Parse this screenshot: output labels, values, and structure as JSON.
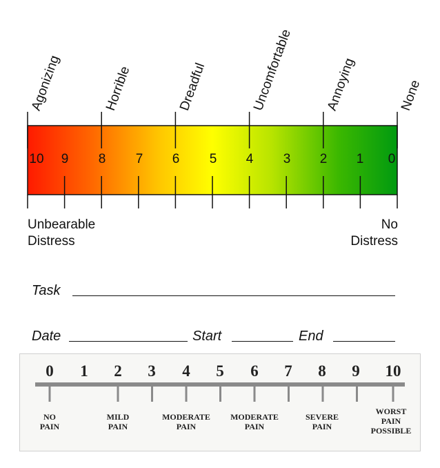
{
  "top_scale": {
    "descriptors": [
      {
        "text": "Agonizing",
        "value": 10
      },
      {
        "text": "Horrible",
        "value": 8
      },
      {
        "text": "Dreadful",
        "value": 6
      },
      {
        "text": "Uncomfortable",
        "value": 4
      },
      {
        "text": "Annoying",
        "value": 2
      },
      {
        "text": "None",
        "value": 0
      }
    ],
    "numbers": [
      "10",
      "9",
      "8",
      "7",
      "6",
      "5",
      "4",
      "3",
      "2",
      "1",
      "0"
    ],
    "left_label": {
      "line1": "Unbearable",
      "line2": "Distress"
    },
    "right_label": {
      "line1": "No",
      "line2": "Distress"
    },
    "gradient_colors": [
      "#ff1a00",
      "#ff7a00",
      "#ffd400",
      "#ffff00",
      "#b4e000",
      "#39b800",
      "#009a10"
    ]
  },
  "form": {
    "task_label": "Task",
    "date_label": "Date",
    "start_label": "Start",
    "end_label": "End"
  },
  "pain_scale": {
    "numbers": [
      "0",
      "1",
      "2",
      "3",
      "4",
      "5",
      "6",
      "7",
      "8",
      "9",
      "10"
    ],
    "labels": [
      {
        "line1": "NO",
        "line2": "PAIN",
        "line3": ""
      },
      {
        "line1": "MILD",
        "line2": "PAIN",
        "line3": ""
      },
      {
        "line1": "MODERATE",
        "line2": "PAIN",
        "line3": ""
      },
      {
        "line1": "MODERATE",
        "line2": "PAIN",
        "line3": ""
      },
      {
        "line1": "SEVERE",
        "line2": "PAIN",
        "line3": ""
      },
      {
        "line1": "WORST",
        "line2": "PAIN",
        "line3": "POSSIBLE"
      }
    ]
  }
}
